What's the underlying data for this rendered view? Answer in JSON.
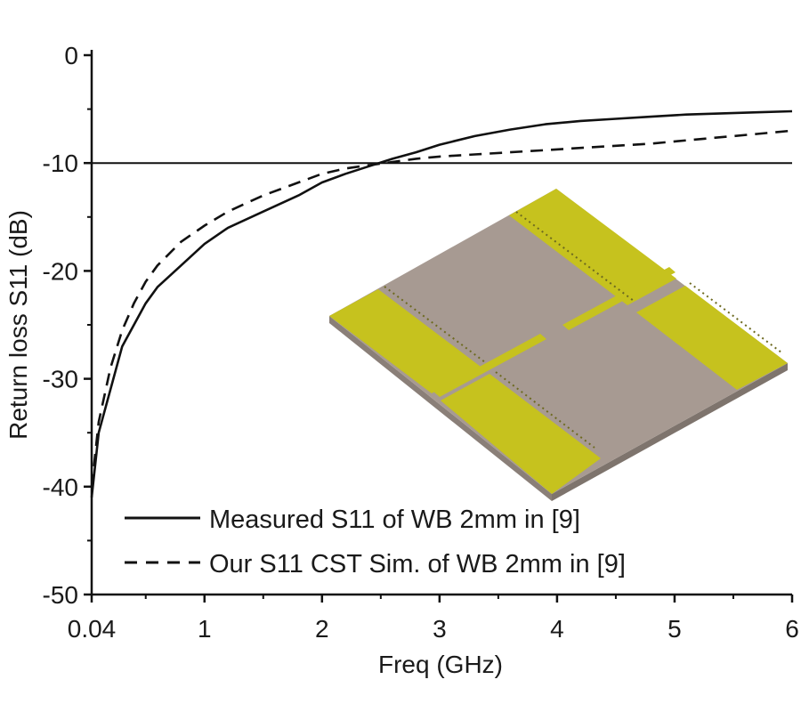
{
  "chart_data": {
    "type": "line",
    "xlabel": "Freq (GHz)",
    "ylabel": "Return loss S11 (dB)",
    "xlim": [
      0.04,
      6
    ],
    "ylim": [
      -50,
      0
    ],
    "x_major_ticks": [
      {
        "value": 0.04,
        "label": "0.04"
      },
      {
        "value": 1,
        "label": "1"
      },
      {
        "value": 2,
        "label": "2"
      },
      {
        "value": 3,
        "label": "3"
      },
      {
        "value": 4,
        "label": "4"
      },
      {
        "value": 5,
        "label": "5"
      },
      {
        "value": 6,
        "label": "6"
      }
    ],
    "y_major_ticks": [
      {
        "value": 0,
        "label": "0"
      },
      {
        "value": -10,
        "label": "-10"
      },
      {
        "value": -20,
        "label": "-20"
      },
      {
        "value": -30,
        "label": "-30"
      },
      {
        "value": -40,
        "label": "-40"
      },
      {
        "value": -50,
        "label": "-50"
      }
    ],
    "reference_line": {
      "y": -10
    },
    "legend_position": "bottom-left",
    "series": [
      {
        "name": "Measured S11 of WB 2mm in [9]",
        "style": "solid",
        "color": "#111111",
        "x": [
          0.04,
          0.1,
          0.2,
          0.3,
          0.4,
          0.5,
          0.6,
          0.8,
          1.0,
          1.2,
          1.5,
          1.8,
          2.0,
          2.2,
          2.4,
          2.6,
          2.8,
          3.0,
          3.3,
          3.6,
          3.9,
          4.2,
          4.5,
          4.8,
          5.1,
          5.4,
          5.7,
          6.0
        ],
        "y": [
          -41,
          -35,
          -31,
          -27,
          -25,
          -23,
          -21.5,
          -19.5,
          -17.5,
          -16.0,
          -14.5,
          -13.0,
          -11.8,
          -11.0,
          -10.3,
          -9.6,
          -9.0,
          -8.3,
          -7.5,
          -6.9,
          -6.4,
          -6.1,
          -5.9,
          -5.7,
          -5.5,
          -5.4,
          -5.3,
          -5.2
        ]
      },
      {
        "name": "Our S11 CST Sim. of WB 2mm in [9]",
        "style": "dashed",
        "color": "#111111",
        "x": [
          0.04,
          0.1,
          0.2,
          0.3,
          0.4,
          0.5,
          0.6,
          0.8,
          1.0,
          1.2,
          1.5,
          1.8,
          2.0,
          2.2,
          2.4,
          2.6,
          2.8,
          3.0,
          3.3,
          3.6,
          3.9,
          4.2,
          4.5,
          4.8,
          5.1,
          5.4,
          5.7,
          6.0
        ],
        "y": [
          -40,
          -34,
          -29,
          -25.5,
          -23,
          -21,
          -19.5,
          -17.3,
          -15.8,
          -14.5,
          -13.0,
          -11.8,
          -11.0,
          -10.5,
          -10.2,
          -9.9,
          -9.6,
          -9.4,
          -9.2,
          -9.0,
          -8.8,
          -8.6,
          -8.4,
          -8.2,
          -7.9,
          -7.6,
          -7.3,
          -7.0
        ]
      }
    ]
  },
  "inset": {
    "description_icon": "antenna-3d-render",
    "board_color": "#a79a92",
    "metal_color": "#c6c21e",
    "edge_color": "#8a7f78"
  }
}
